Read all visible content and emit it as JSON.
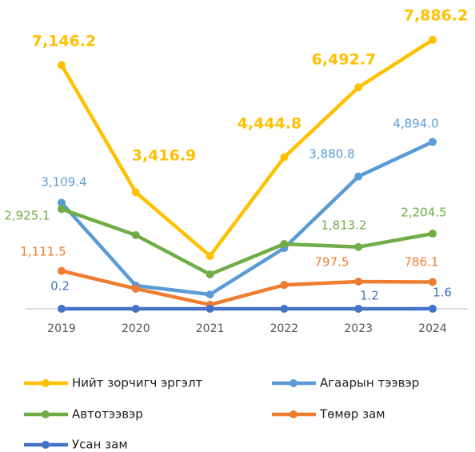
{
  "chart_data": {
    "type": "line",
    "categories": [
      "2019",
      "2020",
      "2021",
      "2022",
      "2023",
      "2024"
    ],
    "ylim": [
      0,
      8000
    ],
    "series": [
      {
        "name": "Нийт зорчигч эргэлт",
        "color": "#FFC000",
        "values": [
          7146.2,
          3416.9,
          1550,
          4444.8,
          6492.7,
          7886.2
        ],
        "value_labels": [
          "7,146.2",
          "3,416.9",
          null,
          "4,444.8",
          "6,492.7",
          "7,886.2"
        ]
      },
      {
        "name": "Агаарын тээвэр",
        "color": "#5B9BD5",
        "values": [
          3109.4,
          680,
          420,
          1780,
          3880.8,
          4894.0
        ],
        "value_labels": [
          "3,109.4",
          null,
          null,
          null,
          "3,880.8",
          "4,894.0"
        ]
      },
      {
        "name": "Автотээвэр",
        "color": "#70AD47",
        "values": [
          2925.1,
          2160,
          1010,
          1900,
          1813.2,
          2204.5
        ],
        "value_labels": [
          "2,925.1",
          null,
          null,
          null,
          "1,813.2",
          "2,204.5"
        ]
      },
      {
        "name": "Төмөр зам",
        "color": "#ED7D31",
        "values": [
          1111.5,
          590,
          120,
          700,
          797.5,
          786.1
        ],
        "value_labels": [
          "1,111.5",
          null,
          null,
          null,
          "797.5",
          "786.1"
        ]
      },
      {
        "name": "Усан зам",
        "color": "#4472C4",
        "values": [
          0.2,
          0.5,
          0.5,
          1,
          1.2,
          1.6
        ],
        "value_labels": [
          "0.2",
          null,
          null,
          null,
          "1.2",
          "1.6"
        ]
      }
    ]
  }
}
